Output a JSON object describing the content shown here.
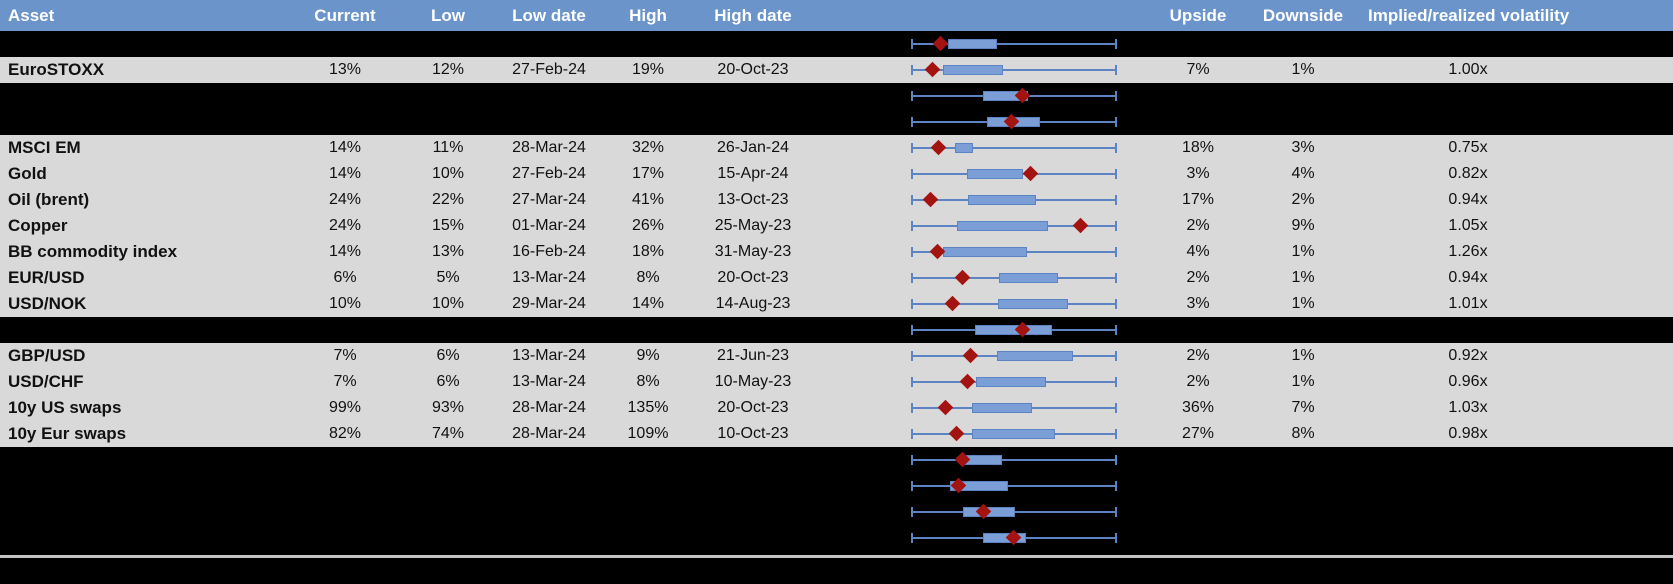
{
  "colors": {
    "header_bg": "#6b94cb",
    "header_text": "#ffffff",
    "data_row_bg": "#d9d9d9",
    "spacer_row_bg": "#000000",
    "box_fill": "#7c9ed6",
    "whisker": "#5d84c2",
    "marker": "#a31310",
    "divider": "#c4c4c4"
  },
  "chart_data": {
    "type": "table",
    "description_of_embedded_plots": "each row shows a horizontal box-whisker spanning the full low-high range with a dark-red diamond marking the current level; positions stored as fractions 0-1 of the whisker span",
    "columns": {
      "asset": "Asset",
      "current": "Current",
      "low": "Low",
      "low_date": "Low date",
      "high": "High",
      "high_date": "High date",
      "upside": "Upside",
      "downside": "Downside",
      "implied_realized": "Implied/realized volatility"
    },
    "rows": [
      {
        "kind": "spacer",
        "asset": "",
        "box": {
          "box_lo": 0.18,
          "box_hi": 0.417,
          "marker": 0.141
        }
      },
      {
        "kind": "data",
        "asset": "EuroSTOXX",
        "current": "13%",
        "low": "12%",
        "low_date": "27-Feb-24",
        "high": "19%",
        "high_date": "20-Oct-23",
        "upside": "7%",
        "downside": "1%",
        "implied_realized": "1.00x",
        "box": {
          "box_lo": 0.155,
          "box_hi": 0.447,
          "marker": 0.102
        }
      },
      {
        "kind": "spacer",
        "asset": "",
        "box": {
          "box_lo": 0.35,
          "box_hi": 0.568,
          "marker": 0.539
        }
      },
      {
        "kind": "spacer",
        "asset": "",
        "box": {
          "box_lo": 0.369,
          "box_hi": 0.626,
          "marker": 0.49
        }
      },
      {
        "kind": "data",
        "asset": "MSCI EM",
        "current": "14%",
        "low": "11%",
        "low_date": "28-Mar-24",
        "high": "32%",
        "high_date": "26-Jan-24",
        "upside": "18%",
        "downside": "3%",
        "implied_realized": "0.75x",
        "box": {
          "box_lo": 0.214,
          "box_hi": 0.301,
          "marker": 0.131
        }
      },
      {
        "kind": "data",
        "asset": "Gold",
        "current": "14%",
        "low": "10%",
        "low_date": "27-Feb-24",
        "high": "17%",
        "high_date": "15-Apr-24",
        "upside": "3%",
        "downside": "4%",
        "implied_realized": "0.82x",
        "box": {
          "box_lo": 0.272,
          "box_hi": 0.544,
          "marker": 0.578
        }
      },
      {
        "kind": "data",
        "asset": "Oil (brent)",
        "current": "24%",
        "low": "22%",
        "low_date": "27-Mar-24",
        "high": "41%",
        "high_date": "13-Oct-23",
        "upside": "17%",
        "downside": "2%",
        "implied_realized": "0.94x",
        "box": {
          "box_lo": 0.277,
          "box_hi": 0.607,
          "marker": 0.092
        }
      },
      {
        "kind": "data",
        "asset": "Copper",
        "current": "24%",
        "low": "15%",
        "low_date": "01-Mar-24",
        "high": "26%",
        "high_date": "25-May-23",
        "upside": "2%",
        "downside": "9%",
        "implied_realized": "1.05x",
        "box": {
          "box_lo": 0.223,
          "box_hi": 0.665,
          "marker": 0.825
        }
      },
      {
        "kind": "data",
        "asset": "BB commodity index",
        "current": "14%",
        "low": "13%",
        "low_date": "16-Feb-24",
        "high": "18%",
        "high_date": "31-May-23",
        "upside": "4%",
        "downside": "1%",
        "implied_realized": "1.26x",
        "box": {
          "box_lo": 0.155,
          "box_hi": 0.563,
          "marker": 0.126
        }
      },
      {
        "kind": "data",
        "asset": "EUR/USD",
        "current": "6%",
        "low": "5%",
        "low_date": "13-Mar-24",
        "high": "8%",
        "high_date": "20-Oct-23",
        "upside": "2%",
        "downside": "1%",
        "implied_realized": "0.94x",
        "box": {
          "box_lo": 0.427,
          "box_hi": 0.714,
          "marker": 0.252
        }
      },
      {
        "kind": "data",
        "asset": "USD/NOK",
        "current": "10%",
        "low": "10%",
        "low_date": "29-Mar-24",
        "high": "14%",
        "high_date": "14-Aug-23",
        "upside": "3%",
        "downside": "1%",
        "implied_realized": "1.01x",
        "box": {
          "box_lo": 0.422,
          "box_hi": 0.762,
          "marker": 0.199
        }
      },
      {
        "kind": "spacer",
        "asset": "",
        "box": {
          "box_lo": 0.311,
          "box_hi": 0.684,
          "marker": 0.539
        }
      },
      {
        "kind": "data",
        "asset": "GBP/USD",
        "current": "7%",
        "low": "6%",
        "low_date": "13-Mar-24",
        "high": "9%",
        "high_date": "21-Jun-23",
        "upside": "2%",
        "downside": "1%",
        "implied_realized": "0.92x",
        "box": {
          "box_lo": 0.417,
          "box_hi": 0.786,
          "marker": 0.291
        }
      },
      {
        "kind": "data",
        "asset": "USD/CHF",
        "current": "7%",
        "low": "6%",
        "low_date": "13-Mar-24",
        "high": "8%",
        "high_date": "10-May-23",
        "upside": "2%",
        "downside": "1%",
        "implied_realized": "0.96x",
        "box": {
          "box_lo": 0.316,
          "box_hi": 0.655,
          "marker": 0.272
        }
      },
      {
        "kind": "data",
        "asset": "10y US swaps",
        "current": "99%",
        "low": "93%",
        "low_date": "28-Mar-24",
        "high": "135%",
        "high_date": "20-Oct-23",
        "upside": "36%",
        "downside": "7%",
        "implied_realized": "1.03x",
        "box": {
          "box_lo": 0.296,
          "box_hi": 0.587,
          "marker": 0.165
        }
      },
      {
        "kind": "data",
        "asset": "10y Eur swaps",
        "current": "82%",
        "low": "74%",
        "low_date": "28-Mar-24",
        "high": "109%",
        "high_date": "10-Oct-23",
        "upside": "27%",
        "downside": "8%",
        "implied_realized": "0.98x",
        "box": {
          "box_lo": 0.296,
          "box_hi": 0.699,
          "marker": 0.223
        }
      },
      {
        "kind": "spacer",
        "asset": "",
        "box": {
          "box_lo": 0.238,
          "box_hi": 0.442,
          "marker": 0.252
        }
      },
      {
        "kind": "spacer",
        "asset": "",
        "box": {
          "box_lo": 0.189,
          "box_hi": 0.471,
          "marker": 0.228
        }
      },
      {
        "kind": "spacer",
        "asset": "",
        "box": {
          "box_lo": 0.252,
          "box_hi": 0.505,
          "marker": 0.35
        }
      },
      {
        "kind": "spacer",
        "asset": "",
        "box": {
          "box_lo": 0.35,
          "box_hi": 0.558,
          "marker": 0.495
        }
      }
    ]
  }
}
